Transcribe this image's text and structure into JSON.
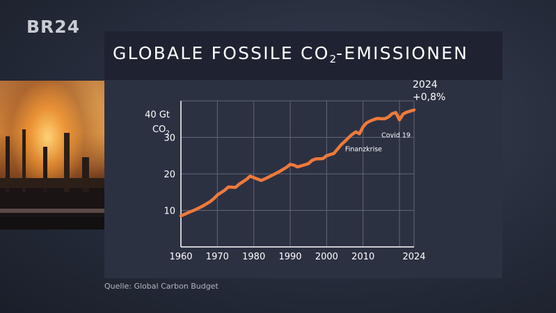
{
  "branding": {
    "logo": "BR24"
  },
  "title": {
    "prefix": "GLOBALE FOSSILE CO",
    "subscript": "2",
    "suffix": "-EMISSIONEN"
  },
  "source": "Quelle: Global Carbon Budget",
  "photo": {
    "icon": "industrial-smoke-image"
  },
  "colors": {
    "line": "#ee7a3a",
    "panel": "#2c3142",
    "titlebar": "#1f2331",
    "grid": "#606678",
    "axis": "#ffffff"
  },
  "chart_data": {
    "type": "line",
    "title": "GLOBALE FOSSILE CO2-EMISSIONEN",
    "ylabel_line1": "40 Gt",
    "ylabel_line2_prefix": "CO",
    "ylabel_line2_sub": "2",
    "xlim": [
      1960,
      2024
    ],
    "ylim": [
      0,
      40
    ],
    "grid": true,
    "x_ticks": [
      {
        "value": 1960,
        "label": "1960"
      },
      {
        "value": 1970,
        "label": "1970"
      },
      {
        "value": 1980,
        "label": "1980"
      },
      {
        "value": 1990,
        "label": "1990"
      },
      {
        "value": 2000,
        "label": "2000"
      },
      {
        "value": 2010,
        "label": "2010"
      },
      {
        "value": 2024,
        "label": "2024"
      }
    ],
    "x_grid": [
      1960,
      1970,
      1980,
      1990,
      2000,
      2010,
      2020,
      2024
    ],
    "y_ticks": [
      {
        "value": 10,
        "label": "10"
      },
      {
        "value": 20,
        "label": "20"
      },
      {
        "value": 30,
        "label": "30"
      }
    ],
    "y_grid": [
      10,
      20,
      30,
      40
    ],
    "series": [
      {
        "x": [
          1960,
          1962,
          1964,
          1966,
          1968,
          1969,
          1970,
          1972,
          1973,
          1975,
          1976,
          1978,
          1979,
          1980,
          1982,
          1983,
          1985,
          1987,
          1989,
          1990,
          1991,
          1992,
          1993,
          1995,
          1996,
          1997,
          1999,
          2000,
          2001,
          2002,
          2003,
          2004,
          2005,
          2006,
          2007,
          2008,
          2009,
          2010,
          2011,
          2012,
          2013,
          2014,
          2015,
          2016,
          2017,
          2018,
          2019,
          2020,
          2021,
          2022,
          2023,
          2024
        ],
        "y": [
          8.5,
          9.4,
          10.2,
          11.2,
          12.4,
          13.2,
          14.2,
          15.5,
          16.4,
          16.3,
          17.2,
          18.5,
          19.4,
          19.0,
          18.2,
          18.6,
          19.6,
          20.6,
          21.8,
          22.6,
          22.4,
          21.9,
          22.2,
          22.8,
          23.7,
          24.1,
          24.2,
          25.0,
          25.3,
          25.6,
          26.8,
          28.0,
          28.9,
          29.9,
          30.8,
          31.5,
          31.0,
          32.9,
          34.0,
          34.5,
          34.9,
          35.2,
          35.1,
          35.1,
          35.6,
          36.5,
          36.8,
          34.8,
          36.4,
          36.9,
          37.2,
          37.5
        ]
      }
    ],
    "annotations": [
      {
        "label": "Finanzkrise",
        "x": 2009,
        "y": 31.0
      },
      {
        "label": "Covid 19",
        "x": 2020,
        "y": 34.8
      },
      {
        "label": "2024",
        "x": 2024,
        "y": 37.5
      },
      {
        "label": "+0,8%",
        "x": 2024,
        "y": 37.5
      }
    ]
  }
}
